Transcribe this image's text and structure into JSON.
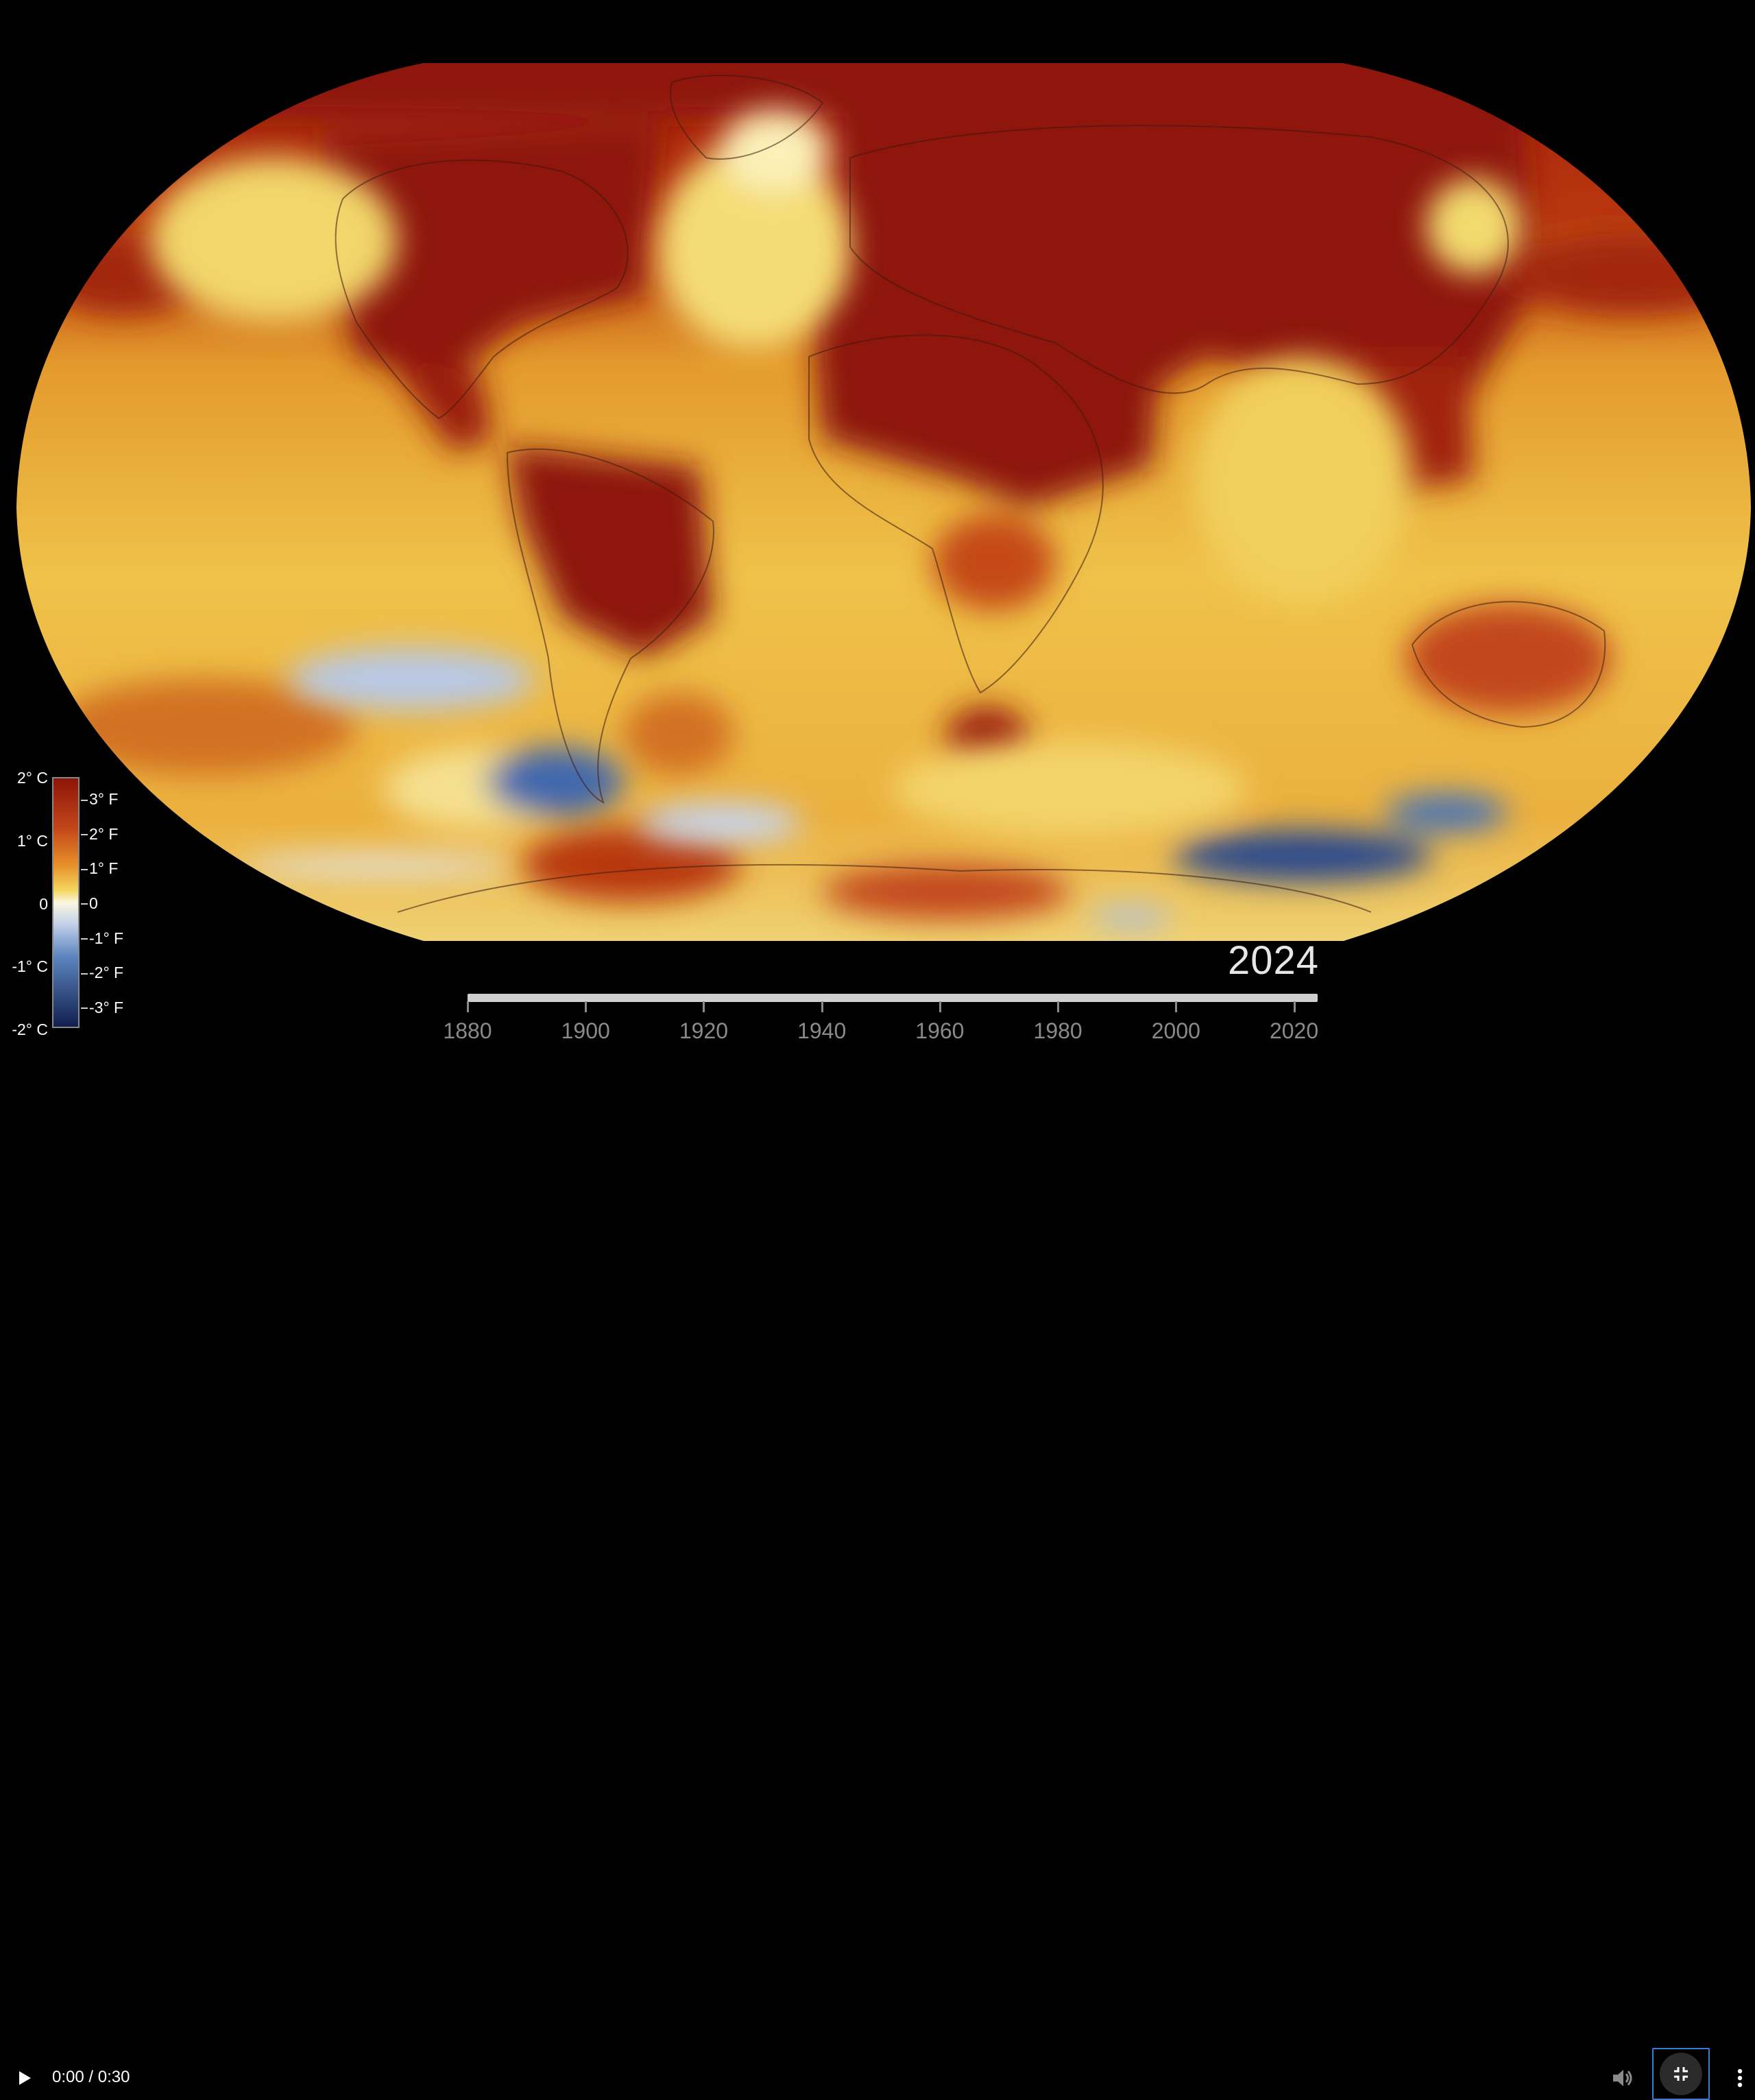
{
  "legend": {
    "celsius": [
      "2° C",
      "1° C",
      "0",
      "-1° C",
      "-2° C"
    ],
    "fahrenheit": [
      "3° F",
      "2° F",
      "1° F",
      "0",
      "-1° F",
      "-2° F",
      "-3° F"
    ]
  },
  "year_display": "2024",
  "timeline": {
    "labels": [
      "1880",
      "1900",
      "1920",
      "1940",
      "1960",
      "1980",
      "2000",
      "2020"
    ],
    "progress": 1.0
  },
  "controls": {
    "time": "0:00 / 0:30",
    "play_icon": "play-icon",
    "volume_icon": "volume-icon",
    "exit_fullscreen_icon": "exit-fullscreen-icon",
    "more_icon": "more-options-icon"
  },
  "colors": {
    "warm_dark": "#8e1508",
    "warm_mid": "#c94a14",
    "warm_light": "#e89a2a",
    "neutral": "#f3df77",
    "cool": "#4a73b5",
    "cool_dark": "#21407e"
  }
}
